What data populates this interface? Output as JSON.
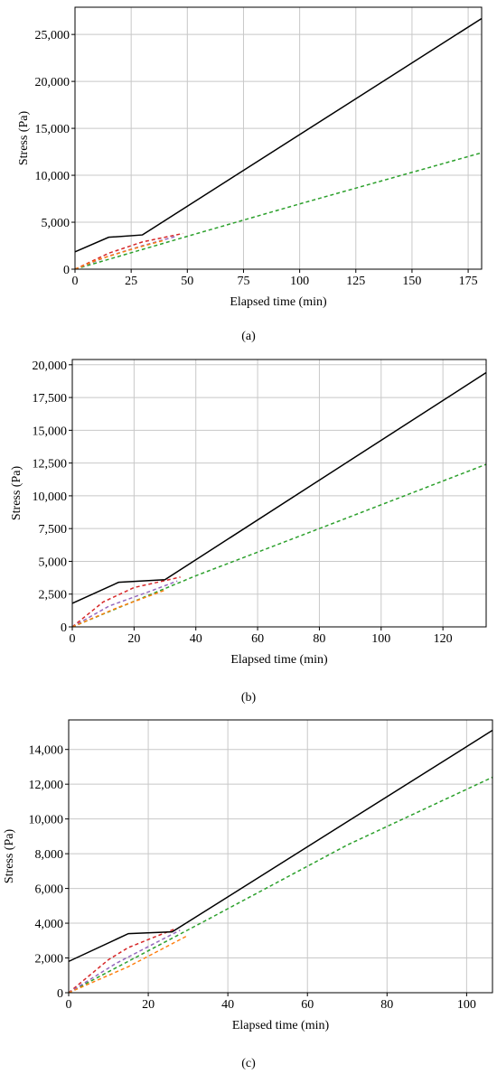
{
  "chart_data": [
    {
      "type": "line",
      "caption": "(a)",
      "xlabel": "Elapsed time (min)",
      "ylabel": "Stress (Pa)",
      "grid": true,
      "xlim": [
        0,
        181
      ],
      "ylim": [
        0,
        27900
      ],
      "xticks": [
        0,
        25,
        50,
        75,
        100,
        125,
        150,
        175
      ],
      "yticks": [
        0,
        {
          "value": 5000,
          "label": "5,000"
        },
        {
          "value": 10000,
          "label": "10,000"
        },
        {
          "value": 15000,
          "label": "15,000"
        },
        {
          "value": 20000,
          "label": "20,000"
        },
        {
          "value": 25000,
          "label": "25,000"
        }
      ],
      "series": [
        {
          "color": "#2ca02c",
          "dashed": true,
          "x": [
            0,
            50,
            100,
            181
          ],
          "values": [
            0,
            3500,
            6950,
            12400
          ]
        },
        {
          "color": "#d62728",
          "dashed": true,
          "x": [
            0,
            15,
            30,
            48
          ],
          "values": [
            0,
            1700,
            2900,
            3800
          ]
        },
        {
          "color": "#9467bd",
          "dashed": true,
          "x": [
            0,
            15,
            30,
            45
          ],
          "values": [
            0,
            1400,
            2500,
            3500
          ]
        },
        {
          "color": "#ff7f0e",
          "dashed": true,
          "x": [
            0,
            10,
            25,
            40
          ],
          "values": [
            0,
            1000,
            2100,
            3100
          ]
        },
        {
          "color": "#000000",
          "dashed": false,
          "x": [
            0,
            15,
            30,
            181
          ],
          "values": [
            1850,
            3400,
            3650,
            26700
          ]
        }
      ]
    },
    {
      "type": "line",
      "caption": "(b)",
      "xlabel": "Elapsed time (min)",
      "ylabel": "Stress (Pa)",
      "grid": true,
      "xlim": [
        0,
        134
      ],
      "ylim": [
        0,
        20400
      ],
      "xticks": [
        0,
        20,
        40,
        60,
        80,
        100,
        120
      ],
      "yticks": [
        0,
        {
          "value": 2500,
          "label": "2,500"
        },
        {
          "value": 5000,
          "label": "5,000"
        },
        {
          "value": 7500,
          "label": "7,500"
        },
        {
          "value": 10000,
          "label": "10,000"
        },
        {
          "value": 12500,
          "label": "12,500"
        },
        {
          "value": 15000,
          "label": "15,000"
        },
        {
          "value": 17500,
          "label": "17,500"
        },
        {
          "value": 20000,
          "label": "20,000"
        }
      ],
      "series": [
        {
          "color": "#2ca02c",
          "dashed": true,
          "x": [
            0,
            40,
            80,
            134
          ],
          "values": [
            0,
            3900,
            7500,
            12400
          ]
        },
        {
          "color": "#d62728",
          "dashed": true,
          "x": [
            0,
            10,
            20,
            35
          ],
          "values": [
            0,
            1900,
            3000,
            3800
          ]
        },
        {
          "color": "#9467bd",
          "dashed": true,
          "x": [
            0,
            12,
            25,
            34
          ],
          "values": [
            0,
            1600,
            2700,
            3500
          ]
        },
        {
          "color": "#ff7f0e",
          "dashed": true,
          "x": [
            0,
            15,
            30
          ],
          "values": [
            0,
            1500,
            2800
          ]
        },
        {
          "color": "#000000",
          "dashed": false,
          "x": [
            0,
            15,
            30,
            134
          ],
          "values": [
            1800,
            3400,
            3600,
            19400
          ]
        }
      ]
    },
    {
      "type": "line",
      "caption": "(c)",
      "xlabel": "Elapsed time (min)",
      "ylabel": "Stress (Pa)",
      "grid": true,
      "xlim": [
        0,
        106.5
      ],
      "ylim": [
        0,
        15700
      ],
      "xticks": [
        0,
        20,
        40,
        60,
        80,
        100
      ],
      "yticks": [
        0,
        {
          "value": 2000,
          "label": "2,000"
        },
        {
          "value": 4000,
          "label": "4,000"
        },
        {
          "value": 6000,
          "label": "6,000"
        },
        {
          "value": 8000,
          "label": "8,000"
        },
        {
          "value": 10000,
          "label": "10,000"
        },
        {
          "value": 12000,
          "label": "12,000"
        },
        {
          "value": 14000,
          "label": "14,000"
        }
      ],
      "series": [
        {
          "color": "#2ca02c",
          "dashed": true,
          "x": [
            0,
            34,
            70,
            106.5
          ],
          "values": [
            0,
            4100,
            8500,
            12400
          ]
        },
        {
          "color": "#d62728",
          "dashed": true,
          "x": [
            0,
            10,
            15,
            27
          ],
          "values": [
            0,
            1900,
            2600,
            3700
          ]
        },
        {
          "color": "#9467bd",
          "dashed": true,
          "x": [
            0,
            12,
            28
          ],
          "values": [
            0,
            1700,
            3600
          ]
        },
        {
          "color": "#ff7f0e",
          "dashed": true,
          "x": [
            0,
            15,
            30
          ],
          "values": [
            0,
            1500,
            3300
          ]
        },
        {
          "color": "#000000",
          "dashed": false,
          "x": [
            0,
            15,
            26,
            106.5
          ],
          "values": [
            1800,
            3400,
            3500,
            15100
          ]
        }
      ]
    }
  ]
}
